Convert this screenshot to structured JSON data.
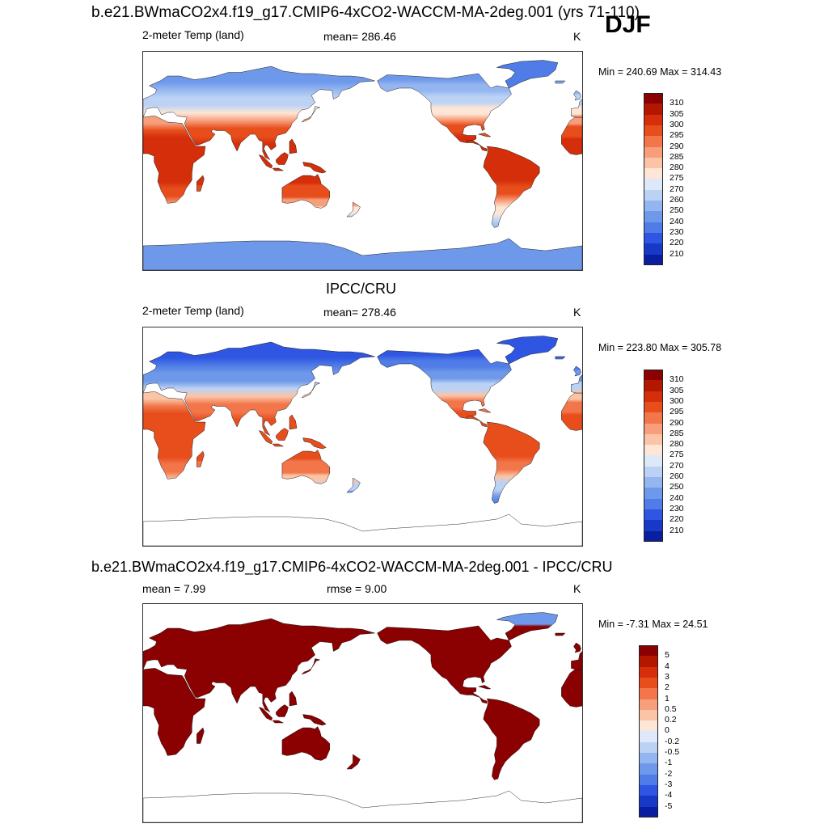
{
  "header": {
    "title": "b.e21.BWmaCO2x4.f19_g17.CMIP6-4xCO2-WACCM-MA-2deg.001 (yrs 71-110)",
    "season": "DJF"
  },
  "panels": [
    {
      "variable": "2-meter Temp (land)",
      "stat": "mean= 286.46",
      "units": "K",
      "minmax": "Min = 240.69 Max = 314.43",
      "field": "model"
    },
    {
      "title": "IPCC/CRU",
      "variable": "2-meter Temp (land)",
      "stat": "mean= 278.46",
      "units": "K",
      "minmax": "Min = 223.80 Max = 305.78",
      "field": "obs"
    },
    {
      "title": "b.e21.BWmaCO2x4.f19_g17.CMIP6-4xCO2-WACCM-MA-2deg.001 - IPCC/CRU",
      "stat_mean": "mean =   7.99",
      "stat_rmse": "rmse =    9.00",
      "units": "K",
      "minmax": "Min =  -7.31 Max =  24.51",
      "field": "diff"
    }
  ],
  "colorbar_abs": {
    "labels": [
      "310",
      "305",
      "300",
      "295",
      "290",
      "285",
      "280",
      "275",
      "270",
      "260",
      "250",
      "240",
      "230",
      "220",
      "210"
    ],
    "colors": [
      "#8b0000",
      "#b31700",
      "#d42e0a",
      "#e84d1c",
      "#f2764a",
      "#f79e7a",
      "#fbc4a6",
      "#fde6d6",
      "#dde8f8",
      "#bcd2f5",
      "#94b6f0",
      "#6e98ea",
      "#4f7ce6",
      "#2f56e2",
      "#1838c8",
      "#0a1fa0"
    ]
  },
  "colorbar_diff": {
    "labels": [
      "5",
      "4",
      "3",
      "2",
      "1",
      "0.5",
      "0.2",
      "0",
      "-0.2",
      "-0.5",
      "-1",
      "-2",
      "-3",
      "-4",
      "-5"
    ],
    "colors": [
      "#8b0000",
      "#b31700",
      "#d42e0a",
      "#e84d1c",
      "#f2764a",
      "#f79e7a",
      "#fbc4a6",
      "#fde6d6",
      "#dde8f8",
      "#bcd2f5",
      "#94b6f0",
      "#6e98ea",
      "#4f7ce6",
      "#2f56e2",
      "#1838c8",
      "#0a1fa0"
    ]
  }
}
